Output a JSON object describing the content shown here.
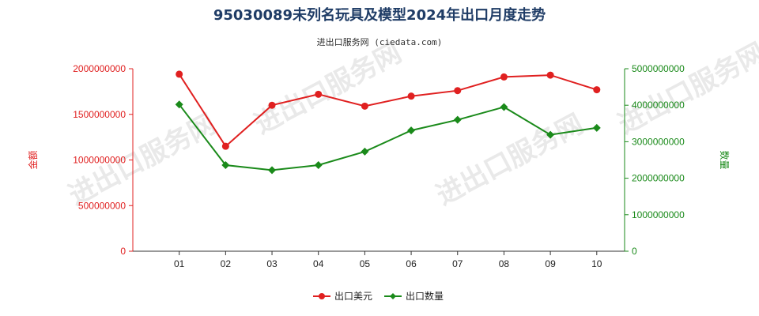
{
  "watermark": "进出口服务网",
  "chart_data": {
    "type": "line",
    "title": "95030089未列名玩具及模型2024年出口月度走势",
    "subtitle": "进出口服务网 (ciedata.com)",
    "categories": [
      "01",
      "02",
      "03",
      "04",
      "05",
      "06",
      "07",
      "08",
      "09",
      "10"
    ],
    "y_left": {
      "label": "金额",
      "lim": [
        0,
        2000000000
      ],
      "ticks": [
        "0",
        "500000000",
        "1000000000",
        "1500000000",
        "2000000000"
      ],
      "color": "#e02020"
    },
    "y_right": {
      "label": "数量",
      "lim": [
        0,
        5000000000
      ],
      "ticks": [
        "0",
        "1000000000",
        "2000000000",
        "3000000000",
        "4000000000",
        "5000000000"
      ],
      "color": "#1a8a1a"
    },
    "series": [
      {
        "name": "出口美元",
        "axis": "left",
        "color": "#e02020",
        "marker": "circle",
        "values": [
          1940000000,
          1150000000,
          1600000000,
          1720000000,
          1590000000,
          1700000000,
          1760000000,
          1910000000,
          1930000000,
          1770000000
        ]
      },
      {
        "name": "出口数量",
        "axis": "right",
        "color": "#1a8a1a",
        "marker": "diamond",
        "values": [
          4020000000,
          2360000000,
          2220000000,
          2360000000,
          2730000000,
          3310000000,
          3600000000,
          3950000000,
          3190000000,
          3380000000
        ]
      }
    ],
    "grid": false,
    "legend_position": "bottom-center"
  }
}
